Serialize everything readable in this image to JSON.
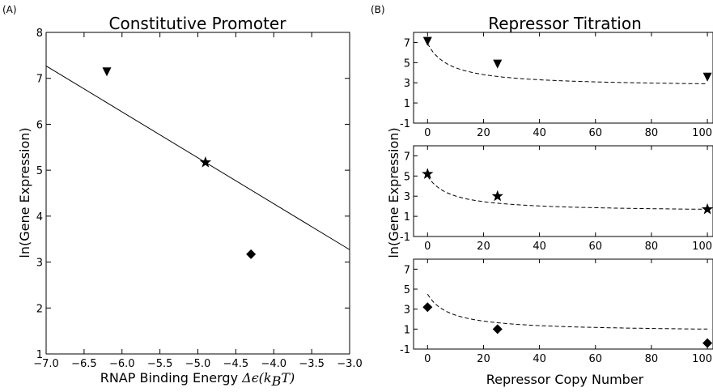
{
  "panels": {
    "a": "(A)",
    "b": "(B)"
  },
  "chart_data": [
    {
      "type": "scatter",
      "title": "Constitutive Promoter",
      "xlabel": "RNAP Binding Energy Δϵ(k_B T)",
      "xlabel_text": "RNAP Binding Energy ",
      "xlabel_math": "Δϵ(k",
      "xlabel_sub": "B",
      "xlabel_tail": "T)",
      "ylabel": "ln(Gene Expression)",
      "xlim": [
        -7.0,
        -3.0
      ],
      "ylim": [
        1,
        8
      ],
      "xticks": [
        -7.0,
        -6.5,
        -6.0,
        -5.5,
        -5.0,
        -4.5,
        -4.0,
        -3.5,
        -3.0
      ],
      "xtick_labels": [
        "−7.0",
        "−6.5",
        "−6.0",
        "−5.5",
        "−5.0",
        "−4.5",
        "−4.0",
        "−3.5",
        "−3.0"
      ],
      "yticks": [
        1,
        2,
        3,
        4,
        5,
        6,
        7,
        8
      ],
      "ytick_labels": [
        "1",
        "2",
        "3",
        "4",
        "5",
        "6",
        "7",
        "8"
      ],
      "grid": false,
      "series": [
        {
          "marker": "triangle-down",
          "x": [
            -6.2
          ],
          "y": [
            7.15
          ]
        },
        {
          "marker": "star",
          "x": [
            -4.9
          ],
          "y": [
            5.17
          ]
        },
        {
          "marker": "diamond",
          "x": [
            -4.3
          ],
          "y": [
            3.17
          ]
        }
      ],
      "fit_line": {
        "style": "solid",
        "x": [
          -7.0,
          -3.0
        ],
        "y": [
          7.27,
          3.27
        ]
      }
    },
    {
      "type": "scatter",
      "title": "Repressor Titration",
      "xlabel": "Repressor Copy Number",
      "ylabel": "ln(Gene Expression)",
      "subplots": [
        {
          "xlim": [
            -5,
            102
          ],
          "ylim": [
            -1,
            8
          ],
          "yticks": [
            -1,
            1,
            3,
            5,
            7
          ],
          "ytick_labels": [
            "-1",
            "1",
            "3",
            "5",
            "7"
          ],
          "xticks": [
            0,
            20,
            40,
            60,
            80,
            100
          ],
          "xtick_labels": [
            "0",
            "20",
            "40",
            "60",
            "80",
            "100"
          ],
          "marker": "triangle-down",
          "points": {
            "x": [
              0,
              25,
              100
            ],
            "y": [
              7.15,
              4.9,
              3.6
            ]
          },
          "fit": {
            "style": "dashed",
            "start": 6.9,
            "end": 2.9,
            "coef": 2.6,
            "k": 8
          }
        },
        {
          "xlim": [
            -5,
            102
          ],
          "ylim": [
            -1,
            8
          ],
          "yticks": [
            -1,
            1,
            3,
            5,
            7
          ],
          "ytick_labels": [
            "-1",
            "1",
            "3",
            "5",
            "7"
          ],
          "xticks": [
            0,
            20,
            40,
            60,
            80,
            100
          ],
          "xtick_labels": [
            "0",
            "20",
            "40",
            "60",
            "80",
            "100"
          ],
          "marker": "star",
          "points": {
            "x": [
              0,
              25,
              100
            ],
            "y": [
              5.2,
              3.0,
              1.7
            ]
          },
          "fit": {
            "style": "dashed",
            "start": 5.0,
            "end": 1.7,
            "coef": 2.6,
            "k": 8
          }
        },
        {
          "xlim": [
            -5,
            102
          ],
          "ylim": [
            -1,
            8
          ],
          "yticks": [
            -1,
            1,
            3,
            5,
            7
          ],
          "ytick_labels": [
            "-1",
            "1",
            "3",
            "5",
            "7"
          ],
          "xticks": [
            0,
            20,
            40,
            60,
            80,
            100
          ],
          "xtick_labels": [
            "0",
            "20",
            "40",
            "60",
            "80",
            "100"
          ],
          "marker": "diamond",
          "points": {
            "x": [
              0,
              25,
              100
            ],
            "y": [
              3.2,
              1.0,
              -0.4
            ]
          },
          "fit": {
            "style": "dashed",
            "start": 4.5,
            "end": 1.0,
            "coef": 2.6,
            "k": 8
          }
        }
      ]
    }
  ]
}
